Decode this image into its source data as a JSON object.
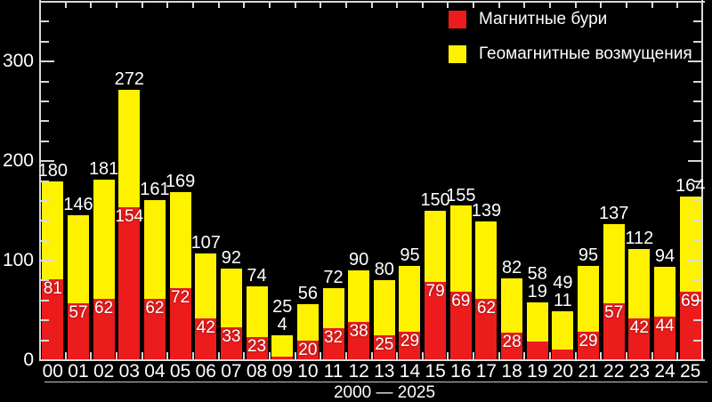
{
  "chart_data": {
    "type": "bar",
    "stacked": true,
    "categories": [
      "00",
      "01",
      "02",
      "03",
      "04",
      "05",
      "06",
      "07",
      "08",
      "09",
      "10",
      "11",
      "12",
      "13",
      "14",
      "15",
      "16",
      "17",
      "18",
      "19",
      "20",
      "21",
      "22",
      "23",
      "24",
      "25"
    ],
    "series": [
      {
        "name": "Магнитные бури",
        "color": "#ec1c1c",
        "values": [
          81,
          57,
          62,
          154,
          62,
          72,
          42,
          33,
          23,
          4,
          20,
          32,
          38,
          25,
          29,
          79,
          69,
          62,
          28,
          19,
          11,
          29,
          57,
          42,
          44,
          69
        ]
      },
      {
        "name": "Геомагнитные возмущения",
        "color": "#fff200",
        "values": [
          99,
          89,
          119,
          118,
          99,
          97,
          65,
          59,
          51,
          21,
          36,
          40,
          52,
          55,
          66,
          71,
          86,
          77,
          54,
          39,
          38,
          66,
          80,
          70,
          50,
          95
        ]
      }
    ],
    "totals": [
      180,
      146,
      181,
      272,
      161,
      169,
      107,
      92,
      74,
      25,
      56,
      72,
      90,
      80,
      95,
      150,
      155,
      139,
      82,
      58,
      49,
      95,
      137,
      112,
      94,
      164
    ],
    "storm_labels_above_bar": [
      "09",
      "19",
      "20"
    ],
    "xlabel": "2000 — 2025",
    "ylabel": "",
    "ylim": [
      0,
      360
    ],
    "yticks": [
      0,
      100,
      200,
      300
    ],
    "y_minor_tick_step": 20,
    "grid": false,
    "legend_position": "top-right",
    "background_color": "#000000",
    "axis_color": "#d9d9d9",
    "label_color": "#ffffff"
  }
}
